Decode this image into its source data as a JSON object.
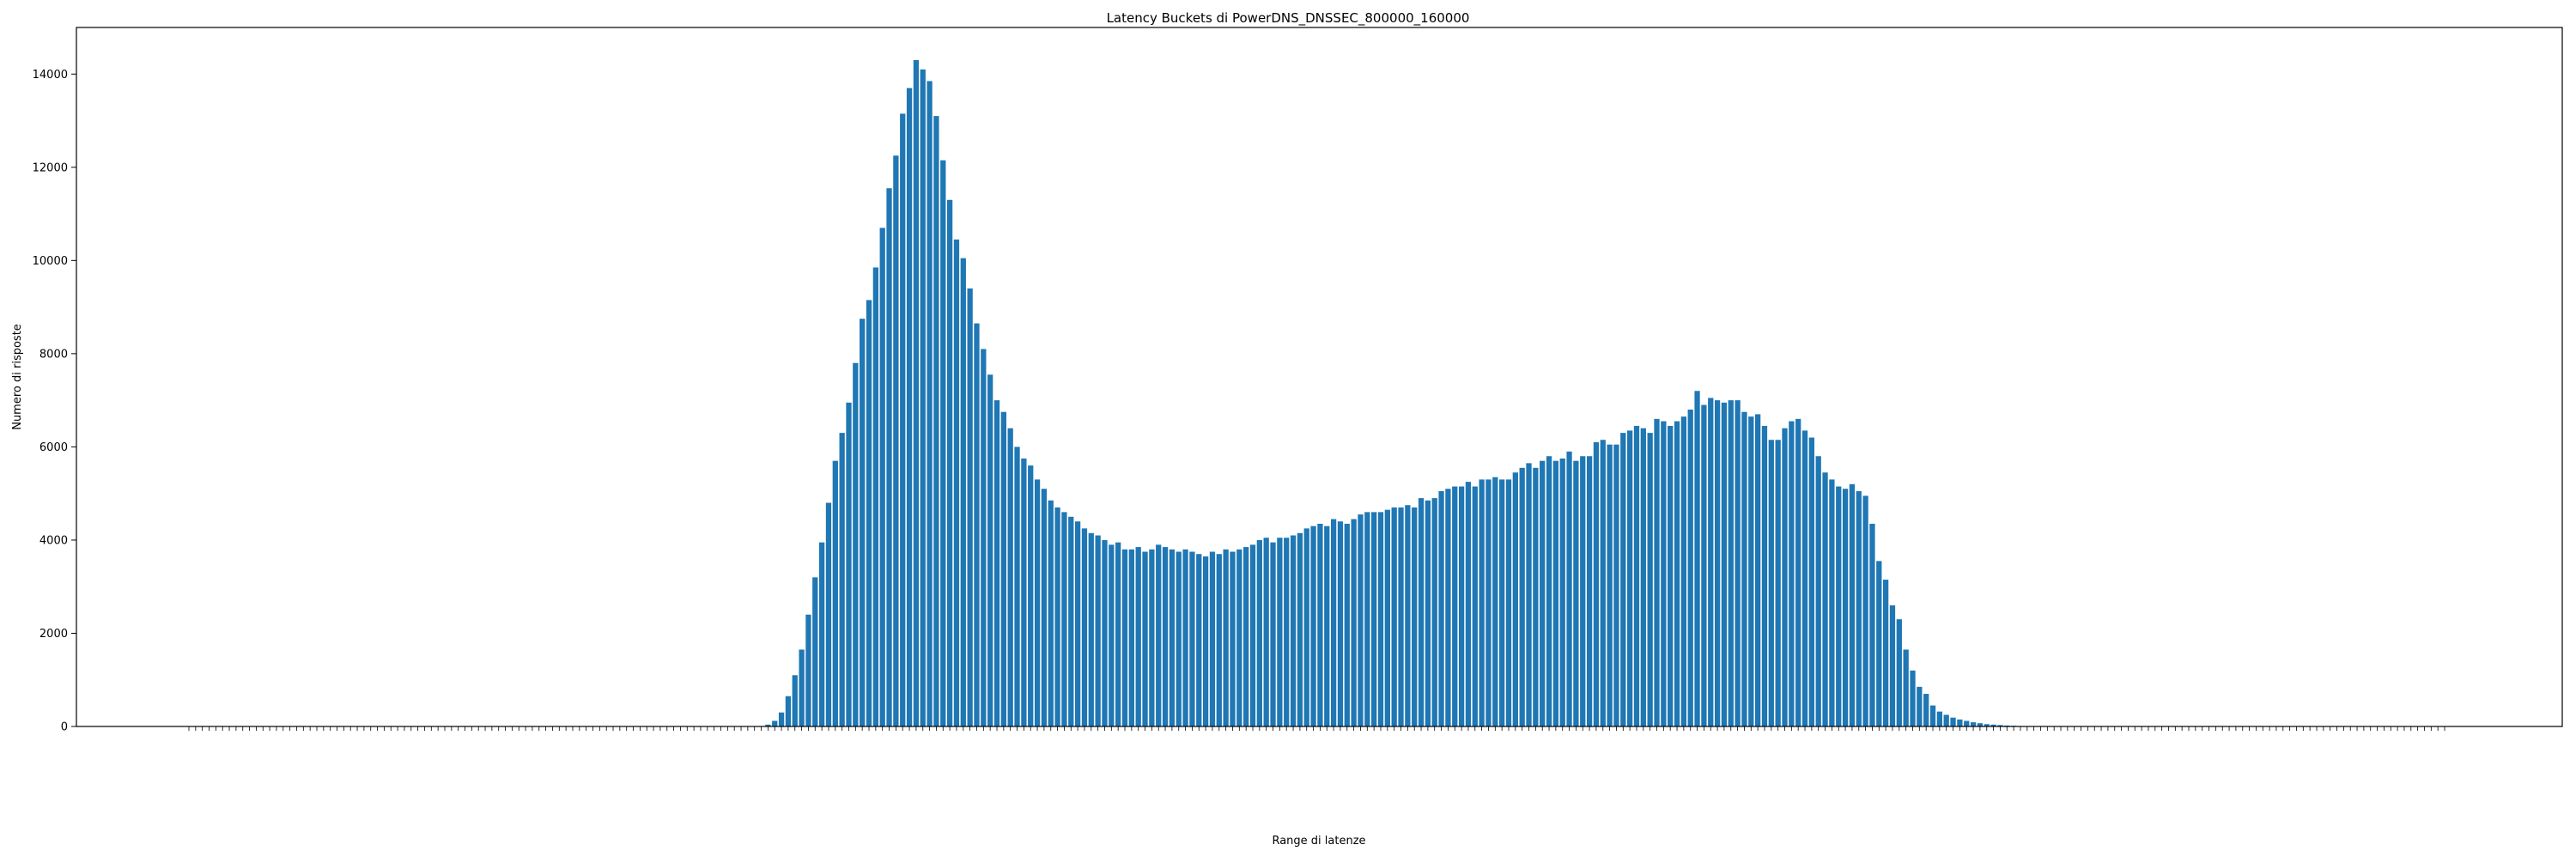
{
  "chart_data": {
    "type": "bar",
    "title": "Latency Buckets di PowerDNS_DNSSEC_800000_160000",
    "xlabel": "Range di latenze",
    "ylabel": "Numero di risposte",
    "ylim": [
      0,
      15000
    ],
    "yticks": [
      0,
      2000,
      4000,
      6000,
      8000,
      10000,
      12000,
      14000
    ],
    "ytick_labels": [
      "0",
      "2000",
      "4000",
      "6000",
      "8000",
      "10000",
      "12000",
      "14000"
    ],
    "grid": false,
    "legend": "none",
    "bar_color": "#1f77b4",
    "values": [
      0,
      0,
      0,
      0,
      0,
      0,
      0,
      0,
      0,
      0,
      0,
      0,
      0,
      0,
      0,
      0,
      0,
      0,
      0,
      0,
      0,
      0,
      0,
      0,
      0,
      0,
      0,
      0,
      0,
      0,
      0,
      0,
      0,
      0,
      0,
      0,
      0,
      0,
      0,
      0,
      0,
      0,
      0,
      0,
      0,
      0,
      0,
      0,
      0,
      0,
      0,
      0,
      0,
      0,
      0,
      0,
      0,
      0,
      0,
      0,
      0,
      0,
      0,
      0,
      0,
      0,
      0,
      0,
      0,
      0,
      0,
      0,
      0,
      0,
      0,
      0,
      0,
      0,
      0,
      0,
      0,
      0,
      0,
      0,
      0,
      10,
      40,
      120,
      300,
      650,
      1100,
      1650,
      2400,
      3200,
      3950,
      4800,
      5700,
      6300,
      6950,
      7800,
      8750,
      9150,
      9850,
      10700,
      11550,
      12250,
      13150,
      13700,
      14300,
      14100,
      13850,
      13100,
      12150,
      11300,
      10450,
      10050,
      9400,
      8650,
      8100,
      7550,
      7000,
      6750,
      6400,
      6000,
      5750,
      5600,
      5300,
      5100,
      4850,
      4700,
      4600,
      4500,
      4400,
      4250,
      4150,
      4100,
      4000,
      3900,
      3950,
      3800,
      3800,
      3850,
      3750,
      3800,
      3900,
      3850,
      3800,
      3750,
      3800,
      3750,
      3700,
      3650,
      3750,
      3700,
      3800,
      3750,
      3800,
      3850,
      3900,
      4000,
      4050,
      3950,
      4050,
      4050,
      4100,
      4150,
      4250,
      4300,
      4350,
      4300,
      4450,
      4400,
      4350,
      4450,
      4550,
      4600,
      4600,
      4600,
      4650,
      4700,
      4700,
      4750,
      4700,
      4900,
      4850,
      4900,
      5050,
      5100,
      5150,
      5150,
      5250,
      5150,
      5300,
      5300,
      5350,
      5300,
      5300,
      5450,
      5550,
      5650,
      5550,
      5700,
      5800,
      5700,
      5750,
      5900,
      5700,
      5800,
      5800,
      6100,
      6150,
      6050,
      6050,
      6300,
      6350,
      6450,
      6400,
      6300,
      6600,
      6550,
      6450,
      6550,
      6650,
      6800,
      7200,
      6900,
      7050,
      7000,
      6950,
      7000,
      7000,
      6750,
      6650,
      6700,
      6450,
      6150,
      6150,
      6400,
      6550,
      6600,
      6350,
      6200,
      5800,
      5450,
      5300,
      5150,
      5100,
      5200,
      5050,
      4950,
      4350,
      3550,
      3150,
      2600,
      2300,
      1650,
      1200,
      850,
      700,
      450,
      320,
      250,
      190,
      150,
      120,
      90,
      70,
      50,
      40,
      30,
      20,
      15,
      10,
      8,
      6,
      10,
      5,
      4,
      3,
      3,
      2,
      2,
      2,
      1,
      1,
      1,
      1,
      1,
      1,
      1,
      1,
      1,
      1,
      1,
      1,
      1,
      1,
      1,
      1,
      1,
      1,
      1,
      1,
      1,
      1,
      1,
      1,
      1,
      1,
      1,
      1,
      1,
      1,
      1,
      1,
      1,
      1,
      1,
      1,
      1,
      1,
      1,
      1,
      1,
      1,
      1,
      1,
      1,
      1,
      1,
      1,
      1,
      1,
      1,
      1,
      1
    ]
  }
}
